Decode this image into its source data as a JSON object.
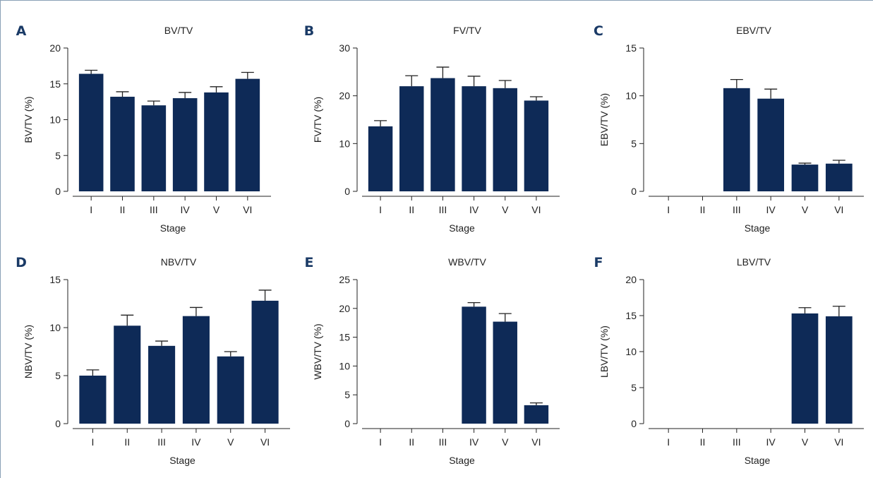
{
  "chart_data": [
    {
      "type": "bar",
      "panel": "A",
      "title": "BV/TV",
      "xlabel": "Stage",
      "ylabel": "BV/TV (%)",
      "ylim": [
        0,
        20
      ],
      "yticks": [
        0,
        5,
        10,
        15,
        20
      ],
      "categories": [
        "I",
        "II",
        "III",
        "IV",
        "V",
        "VI"
      ],
      "values": [
        16.4,
        13.2,
        12.0,
        13.0,
        13.8,
        15.7
      ],
      "errors": [
        0.5,
        0.7,
        0.6,
        0.8,
        0.8,
        0.9
      ]
    },
    {
      "type": "bar",
      "panel": "B",
      "title": "FV/TV",
      "xlabel": "Stage",
      "ylabel": "FV/TV (%)",
      "ylim": [
        0,
        30
      ],
      "yticks": [
        0,
        10,
        20,
        30
      ],
      "categories": [
        "I",
        "II",
        "III",
        "IV",
        "V",
        "VI"
      ],
      "values": [
        13.6,
        22.0,
        23.7,
        22.0,
        21.6,
        19.0
      ],
      "errors": [
        1.2,
        2.2,
        2.3,
        2.1,
        1.6,
        0.8
      ]
    },
    {
      "type": "bar",
      "panel": "C",
      "title": "EBV/TV",
      "xlabel": "Stage",
      "ylabel": "EBV/TV (%)",
      "ylim": [
        0,
        15
      ],
      "yticks": [
        0,
        5,
        10,
        15
      ],
      "categories": [
        "I",
        "II",
        "III",
        "IV",
        "V",
        "VI"
      ],
      "values": [
        0,
        0,
        10.8,
        9.7,
        2.8,
        2.9
      ],
      "errors": [
        0,
        0,
        0.9,
        1.0,
        0.15,
        0.35
      ]
    },
    {
      "type": "bar",
      "panel": "D",
      "title": "NBV/TV",
      "xlabel": "Stage",
      "ylabel": "NBV/TV (%)",
      "ylim": [
        0,
        15
      ],
      "yticks": [
        0,
        5,
        10,
        15
      ],
      "categories": [
        "I",
        "II",
        "III",
        "IV",
        "V",
        "VI"
      ],
      "values": [
        5.0,
        10.2,
        8.1,
        11.2,
        7.0,
        12.8
      ],
      "errors": [
        0.6,
        1.1,
        0.5,
        0.9,
        0.5,
        1.1
      ]
    },
    {
      "type": "bar",
      "panel": "E",
      "title": "WBV/TV",
      "xlabel": "Stage",
      "ylabel": "WBV/TV (%)",
      "ylim": [
        0,
        25
      ],
      "yticks": [
        0,
        5,
        10,
        15,
        20,
        25
      ],
      "categories": [
        "I",
        "II",
        "III",
        "IV",
        "V",
        "VI"
      ],
      "values": [
        0,
        0,
        0,
        20.3,
        17.7,
        3.2
      ],
      "errors": [
        0,
        0,
        0,
        0.7,
        1.4,
        0.4
      ]
    },
    {
      "type": "bar",
      "panel": "F",
      "title": "LBV/TV",
      "xlabel": "Stage",
      "ylabel": "LBV/TV (%)",
      "ylim": [
        0,
        20
      ],
      "yticks": [
        0,
        5,
        10,
        15,
        20
      ],
      "categories": [
        "I",
        "II",
        "III",
        "IV",
        "V",
        "VI"
      ],
      "values": [
        0,
        0,
        0,
        0,
        15.3,
        14.9
      ],
      "errors": [
        0,
        0,
        0,
        0,
        0.8,
        1.4
      ]
    }
  ],
  "colors": {
    "bar": "#0e2a57",
    "panel_letter": "#1a3a66",
    "frame": "#8aa0b6"
  }
}
